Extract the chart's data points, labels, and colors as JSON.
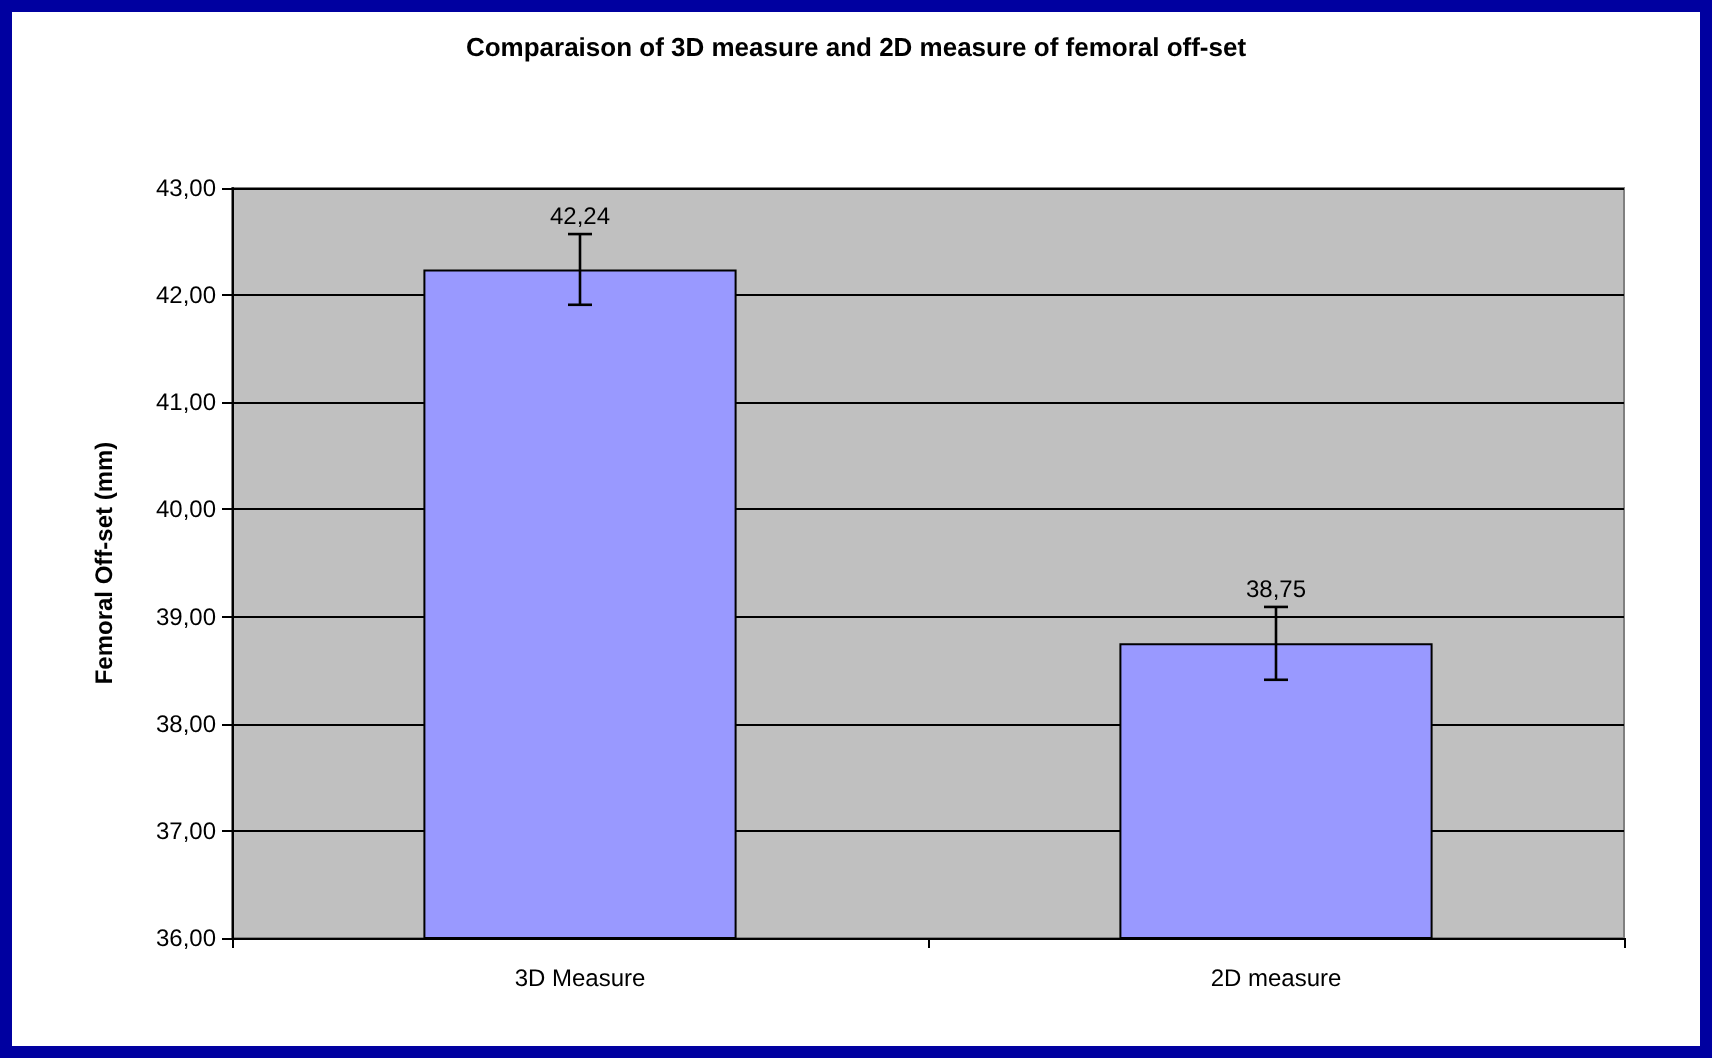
{
  "chart_data": {
    "type": "bar",
    "title": "Comparaison of 3D measure and 2D measure of femoral off-set",
    "ylabel": "Femoral Off-set (mm)",
    "categories": [
      "3D Measure",
      "2D measure"
    ],
    "values": [
      42.24,
      38.75
    ],
    "errors": [
      0.33,
      0.34
    ],
    "value_labels": [
      "42,24",
      "38,75"
    ],
    "color": "#9999ff",
    "ylim": [
      36,
      43
    ],
    "yticks": [
      {
        "value": 36,
        "label": "36,00"
      },
      {
        "value": 37,
        "label": "37,00"
      },
      {
        "value": 38,
        "label": "38,00"
      },
      {
        "value": 39,
        "label": "39,00"
      },
      {
        "value": 40,
        "label": "40,00"
      },
      {
        "value": 41,
        "label": "41,00"
      },
      {
        "value": 42,
        "label": "42,00"
      },
      {
        "value": 43,
        "label": "43,00"
      }
    ],
    "grid": "y"
  }
}
